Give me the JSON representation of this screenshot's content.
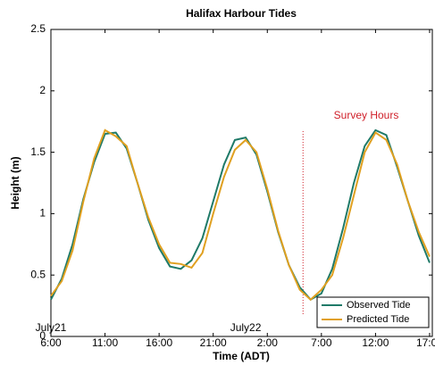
{
  "chart_data": {
    "type": "line",
    "title": "Halifax Harbour Tides",
    "x_label": "Time (ADT)",
    "y_label": "Height (m)",
    "x": [
      6,
      7,
      8,
      9,
      10,
      11,
      12,
      13,
      14,
      15,
      16,
      17,
      18,
      19,
      20,
      21,
      22,
      23,
      24,
      25,
      26,
      27,
      28,
      29,
      30,
      31,
      32,
      33,
      34,
      35,
      36,
      37,
      38,
      39,
      40,
      41
    ],
    "series": [
      {
        "name": "Observed Tide",
        "color": "#1f7a68",
        "values": [
          0.3,
          0.47,
          0.75,
          1.12,
          1.42,
          1.65,
          1.66,
          1.53,
          1.25,
          0.95,
          0.72,
          0.57,
          0.55,
          0.62,
          0.8,
          1.1,
          1.4,
          1.6,
          1.62,
          1.48,
          1.18,
          0.85,
          0.58,
          0.4,
          0.3,
          0.35,
          0.55,
          0.88,
          1.25,
          1.55,
          1.68,
          1.64,
          1.38,
          1.1,
          0.82,
          0.6
        ]
      },
      {
        "name": "Predicted Tide",
        "color": "#e0a020",
        "values": [
          0.33,
          0.45,
          0.7,
          1.1,
          1.45,
          1.68,
          1.63,
          1.55,
          1.25,
          0.97,
          0.75,
          0.6,
          0.59,
          0.56,
          0.68,
          1.0,
          1.3,
          1.52,
          1.6,
          1.5,
          1.2,
          0.86,
          0.58,
          0.38,
          0.3,
          0.38,
          0.5,
          0.8,
          1.15,
          1.5,
          1.66,
          1.6,
          1.4,
          1.1,
          0.85,
          0.65
        ]
      }
    ],
    "xlim": [
      6,
      41.25
    ],
    "xticks": [
      {
        "value": 6,
        "label": "6:00"
      },
      {
        "value": 11,
        "label": "11:00"
      },
      {
        "value": 16,
        "label": "16:00"
      },
      {
        "value": 21,
        "label": "21:00"
      },
      {
        "value": 26,
        "label": "2:00"
      },
      {
        "value": 31,
        "label": "7:00"
      },
      {
        "value": 36,
        "label": "12:00"
      },
      {
        "value": 41,
        "label": "17:00"
      }
    ],
    "ylim": [
      0,
      2.5
    ],
    "yticks": [
      0,
      0.5,
      1,
      1.5,
      2,
      2.5
    ],
    "date_labels": [
      {
        "value": 6,
        "label": "July21"
      },
      {
        "value": 24,
        "label": "July22"
      }
    ],
    "survey": {
      "value": 29.3,
      "label": "Survey Hours",
      "color": "#d0202a"
    },
    "grid": false,
    "legend": "lower right"
  }
}
